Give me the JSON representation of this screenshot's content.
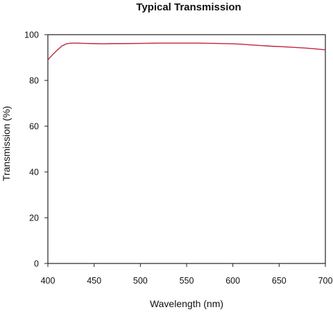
{
  "chart_data": {
    "type": "line",
    "title": "Typical Transmission",
    "xlabel": "Wavelength (nm)",
    "ylabel": "Transmission (%)",
    "xlim": [
      400,
      700
    ],
    "ylim": [
      0,
      100
    ],
    "x_ticks": [
      "400",
      "450",
      "500",
      "550",
      "600",
      "650",
      "700"
    ],
    "y_ticks": [
      "0",
      "20",
      "40",
      "60",
      "80",
      "100"
    ],
    "grid": false,
    "legend": "none",
    "series": [
      {
        "color": "#c0253a",
        "x": [
          400,
          405,
          410,
          415,
          420,
          425,
          430,
          440,
          450,
          460,
          470,
          480,
          500,
          520,
          540,
          560,
          580,
          600,
          610,
          620,
          640,
          660,
          680,
          700
        ],
        "y": [
          89.0,
          91.2,
          93.2,
          95.0,
          96.0,
          96.3,
          96.3,
          96.2,
          96.1,
          96.0,
          96.1,
          96.1,
          96.2,
          96.3,
          96.3,
          96.3,
          96.2,
          96.0,
          95.8,
          95.5,
          95.0,
          94.6,
          94.1,
          93.4
        ]
      }
    ]
  }
}
